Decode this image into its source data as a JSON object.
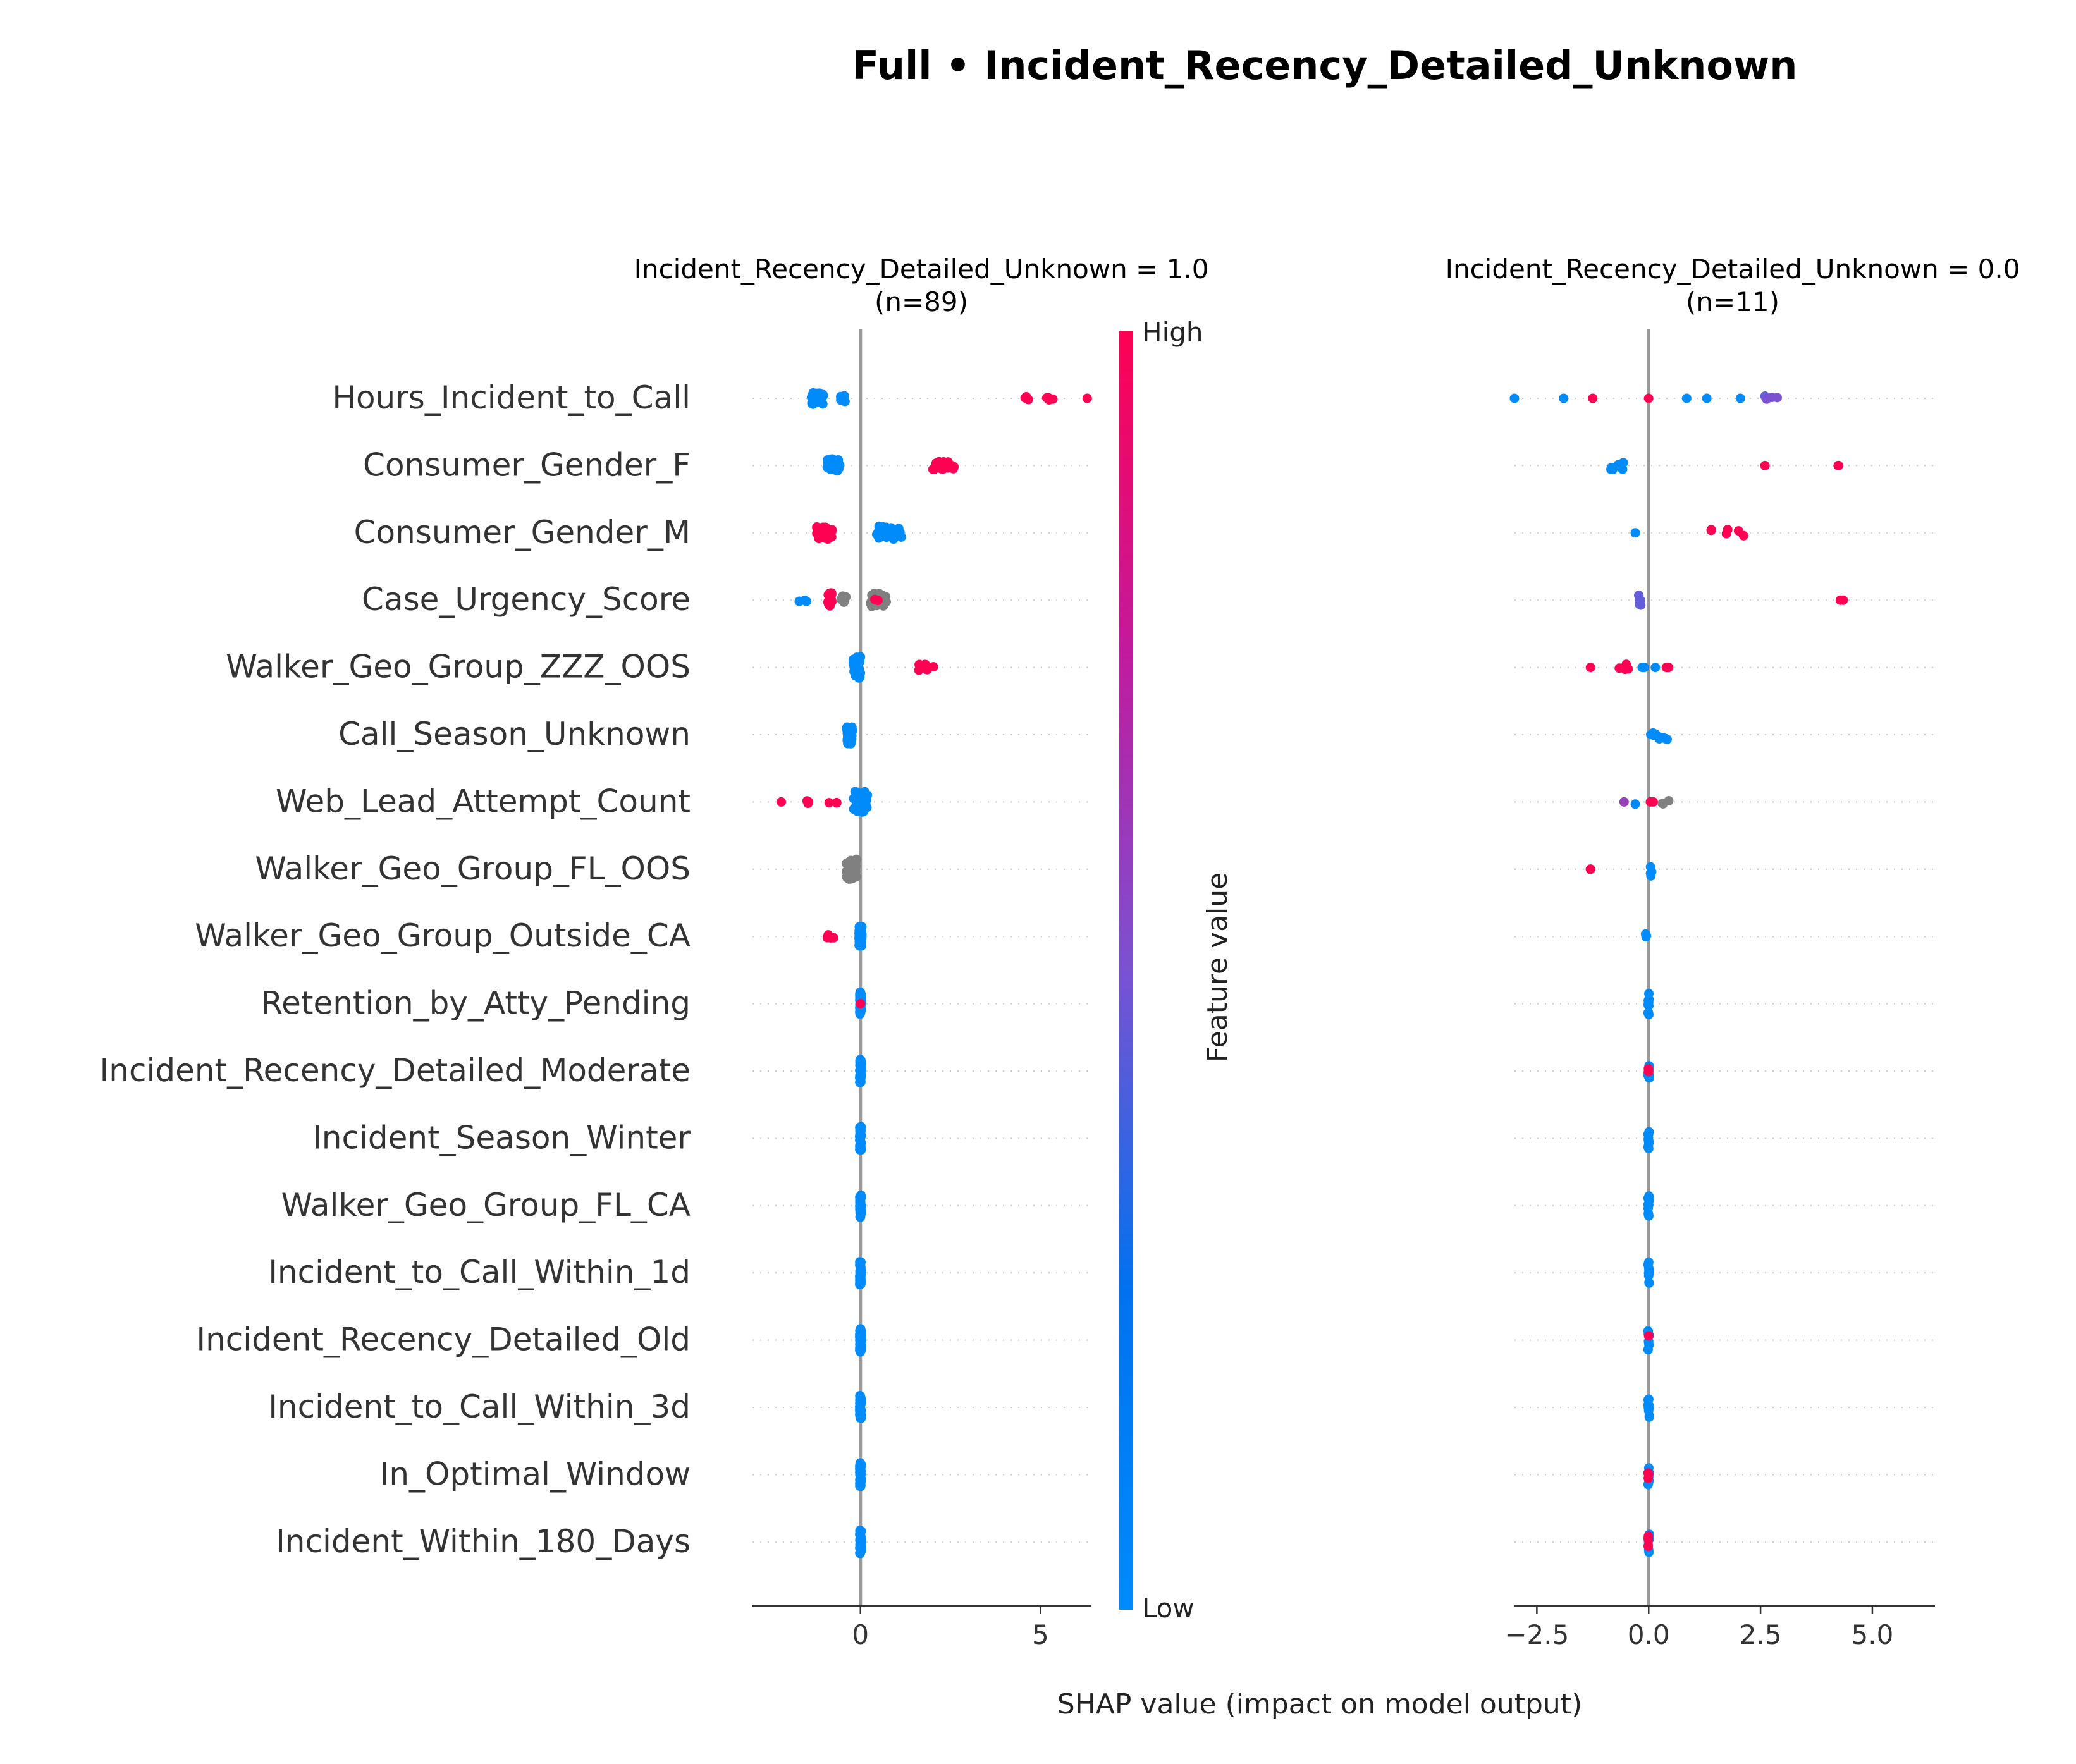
{
  "chart_data": {
    "type": "scatter",
    "subtype": "shap-beeswarm",
    "title": "Full • Incident_Recency_Detailed_Unknown",
    "xlabel": "SHAP value (impact on model output)",
    "features": [
      "Hours_Incident_to_Call",
      "Consumer_Gender_F",
      "Consumer_Gender_M",
      "Case_Urgency_Score",
      "Walker_Geo_Group_ZZZ_OOS",
      "Call_Season_Unknown",
      "Web_Lead_Attempt_Count",
      "Walker_Geo_Group_FL_OOS",
      "Walker_Geo_Group_Outside_CA",
      "Retention_by_Atty_Pending",
      "Incident_Recency_Detailed_Moderate",
      "Incident_Season_Winter",
      "Walker_Geo_Group_FL_CA",
      "Incident_to_Call_Within_1d",
      "Incident_Recency_Detailed_Old",
      "Incident_to_Call_Within_3d",
      "In_Optimal_Window",
      "Incident_Within_180_Days"
    ],
    "colorbar": {
      "label": "Feature value",
      "high_label": "High",
      "low_label": "Low",
      "low_color": "#008bfb",
      "high_color": "#ff0052",
      "missing_color": "#808080"
    },
    "panels": [
      {
        "title_line1": "Incident_Recency_Detailed_Unknown = 1.0",
        "title_line2": "(n=89)",
        "xlim": [
          -3,
          6.4
        ],
        "xticks": [
          0,
          5
        ],
        "xtick_labels": [
          "0",
          "5"
        ],
        "points": [
          {
            "f": 0,
            "x": -1.2,
            "n": 34,
            "spread": 0.35,
            "v": 0.0,
            "h": 0.18
          },
          {
            "f": 0,
            "x": -0.5,
            "n": 4,
            "spread": 0.2,
            "v": 0.0,
            "h": 0.1
          },
          {
            "f": 0,
            "x": 4.6,
            "n": 4,
            "spread": 0.15,
            "v": 1.0,
            "h": 0.05
          },
          {
            "f": 0,
            "x": 5.3,
            "n": 4,
            "spread": 0.25,
            "v": 1.0,
            "h": 0.05
          },
          {
            "f": 0,
            "x": 6.3,
            "n": 1,
            "spread": 0,
            "v": 1.0,
            "h": 0
          },
          {
            "f": 1,
            "x": -0.75,
            "n": 30,
            "spread": 0.35,
            "v": 0.0,
            "h": 0.2
          },
          {
            "f": 1,
            "x": 2.3,
            "n": 34,
            "spread": 0.6,
            "v": 1.0,
            "h": 0.12
          },
          {
            "f": 2,
            "x": -1.0,
            "n": 30,
            "spread": 0.45,
            "v": 1.0,
            "h": 0.2
          },
          {
            "f": 2,
            "x": 0.8,
            "n": 28,
            "spread": 0.7,
            "v": 0.0,
            "h": 0.2
          },
          {
            "f": 3,
            "x": -1.6,
            "n": 3,
            "spread": 0.2,
            "v": 0.0,
            "h": 0.05
          },
          {
            "f": 3,
            "x": -0.85,
            "n": 28,
            "spread": 0.12,
            "v": 1.0,
            "h": 0.22
          },
          {
            "f": 3,
            "x": -0.45,
            "n": 6,
            "spread": 0.2,
            "v": null,
            "h": 0.12
          },
          {
            "f": 3,
            "x": 0.5,
            "n": 24,
            "spread": 0.45,
            "v": null,
            "h": 0.2
          },
          {
            "f": 3,
            "x": 0.45,
            "n": 2,
            "spread": 0.1,
            "v": 1.0,
            "h": 0.02
          },
          {
            "f": 4,
            "x": -0.1,
            "n": 40,
            "spread": 0.2,
            "v": 0.0,
            "h": 0.32
          },
          {
            "f": 4,
            "x": 1.8,
            "n": 10,
            "spread": 0.5,
            "v": 1.0,
            "h": 0.1
          },
          {
            "f": 5,
            "x": -0.3,
            "n": 40,
            "spread": 0.15,
            "v": 0.0,
            "h": 0.28
          },
          {
            "f": 6,
            "x": -2.2,
            "n": 1,
            "spread": 0,
            "v": 1.0,
            "h": 0
          },
          {
            "f": 6,
            "x": -1.45,
            "n": 3,
            "spread": 0.1,
            "v": 1.0,
            "h": 0.05
          },
          {
            "f": 6,
            "x": -0.75,
            "n": 3,
            "spread": 0.3,
            "v": 1.0,
            "h": 0.05
          },
          {
            "f": 6,
            "x": 0.0,
            "n": 38,
            "spread": 0.4,
            "v": 0.0,
            "h": 0.32
          },
          {
            "f": 7,
            "x": -0.25,
            "n": 40,
            "spread": 0.3,
            "v": null,
            "h": 0.3
          },
          {
            "f": 8,
            "x": -0.85,
            "n": 6,
            "spread": 0.3,
            "v": 1.0,
            "h": 0.05
          },
          {
            "f": 8,
            "x": 0.0,
            "n": 40,
            "spread": 0.08,
            "v": 0.0,
            "h": 0.3
          },
          {
            "f": 9,
            "x": 0.0,
            "n": 55,
            "spread": 0.04,
            "v": 0.0,
            "h": 0.35
          },
          {
            "f": 9,
            "x": 0.0,
            "n": 1,
            "spread": 0,
            "v": 1.0,
            "h": 0
          },
          {
            "f": 10,
            "x": 0.0,
            "n": 55,
            "spread": 0.04,
            "v": 0.0,
            "h": 0.35
          },
          {
            "f": 11,
            "x": 0.0,
            "n": 55,
            "spread": 0.04,
            "v": 0.0,
            "h": 0.35
          },
          {
            "f": 12,
            "x": 0.0,
            "n": 55,
            "spread": 0.04,
            "v": 0.0,
            "h": 0.35
          },
          {
            "f": 13,
            "x": 0.0,
            "n": 55,
            "spread": 0.04,
            "v": 0.0,
            "h": 0.35
          },
          {
            "f": 14,
            "x": 0.0,
            "n": 55,
            "spread": 0.04,
            "v": 0.0,
            "h": 0.35
          },
          {
            "f": 15,
            "x": 0.0,
            "n": 55,
            "spread": 0.04,
            "v": 0.0,
            "h": 0.35
          },
          {
            "f": 16,
            "x": 0.0,
            "n": 55,
            "spread": 0.04,
            "v": 0.0,
            "h": 0.35
          },
          {
            "f": 17,
            "x": 0.0,
            "n": 55,
            "spread": 0.04,
            "v": 0.0,
            "h": 0.35
          }
        ]
      },
      {
        "title_line1": "Incident_Recency_Detailed_Unknown = 0.0",
        "title_line2": "(n=11)",
        "xlim": [
          -3.0,
          6.4
        ],
        "xticks": [
          -2.5,
          0.0,
          2.5,
          5.0
        ],
        "xtick_labels": [
          "−2.5",
          "0.0",
          "2.5",
          "5.0"
        ],
        "points": [
          {
            "f": 0,
            "x": -3.0,
            "n": 1,
            "spread": 0,
            "v": 0.0,
            "h": 0
          },
          {
            "f": 0,
            "x": -1.9,
            "n": 1,
            "spread": 0,
            "v": 0.0,
            "h": 0
          },
          {
            "f": 0,
            "x": -1.25,
            "n": 1,
            "spread": 0,
            "v": 1.0,
            "h": 0
          },
          {
            "f": 0,
            "x": 0.0,
            "n": 1,
            "spread": 0,
            "v": 1.0,
            "h": 0
          },
          {
            "f": 0,
            "x": 0.85,
            "n": 1,
            "spread": 0,
            "v": 0.0,
            "h": 0
          },
          {
            "f": 0,
            "x": 1.3,
            "n": 1,
            "spread": 0,
            "v": 0.0,
            "h": 0
          },
          {
            "f": 0,
            "x": 2.05,
            "n": 1,
            "spread": 0,
            "v": 0.0,
            "h": 0
          },
          {
            "f": 0,
            "x": 2.6,
            "n": 1,
            "spread": 0,
            "v": 0.4,
            "h": 0.1
          },
          {
            "f": 0,
            "x": 2.75,
            "n": 3,
            "spread": 0.25,
            "v": 0.5,
            "h": 0.03
          },
          {
            "f": 1,
            "x": -0.7,
            "n": 6,
            "spread": 0.3,
            "v": 0.0,
            "h": 0.18
          },
          {
            "f": 1,
            "x": 2.6,
            "n": 1,
            "spread": 0,
            "v": 1.0,
            "h": 0
          },
          {
            "f": 1,
            "x": 4.15,
            "n": 2,
            "spread": 0.2,
            "v": 1.0,
            "h": 0
          },
          {
            "f": 2,
            "x": -0.3,
            "n": 1,
            "spread": 0,
            "v": 0.0,
            "h": 0
          },
          {
            "f": 2,
            "x": 1.75,
            "n": 6,
            "spread": 0.9,
            "v": 1.0,
            "h": 0.1
          },
          {
            "f": 3,
            "x": -0.2,
            "n": 7,
            "spread": 0.05,
            "v": 0.4,
            "h": 0.2
          },
          {
            "f": 3,
            "x": 4.3,
            "n": 2,
            "spread": 0.1,
            "v": 1.0,
            "h": 0
          },
          {
            "f": 4,
            "x": -1.3,
            "n": 1,
            "spread": 0,
            "v": 1.0,
            "h": 0
          },
          {
            "f": 4,
            "x": -0.55,
            "n": 4,
            "spread": 0.4,
            "v": 1.0,
            "h": 0.1
          },
          {
            "f": 4,
            "x": 0.0,
            "n": 3,
            "spread": 0.3,
            "v": 0.0,
            "h": 0
          },
          {
            "f": 4,
            "x": 0.4,
            "n": 2,
            "spread": 0.2,
            "v": 1.0,
            "h": 0
          },
          {
            "f": 5,
            "x": 0.3,
            "n": 9,
            "spread": 0.7,
            "v": 0.0,
            "h": 0.15
          },
          {
            "f": 6,
            "x": -0.3,
            "n": 1,
            "spread": 0,
            "v": 0.0,
            "h": 0.1
          },
          {
            "f": 6,
            "x": -0.55,
            "n": 1,
            "spread": 0,
            "v": 0.6,
            "h": 0
          },
          {
            "f": 6,
            "x": 0.1,
            "n": 2,
            "spread": 0.2,
            "v": 1.0,
            "h": 0
          },
          {
            "f": 6,
            "x": 0.4,
            "n": 3,
            "spread": 0.2,
            "v": null,
            "h": 0.06
          },
          {
            "f": 7,
            "x": -1.3,
            "n": 2,
            "spread": 0.15,
            "v": 1.0,
            "h": 0
          },
          {
            "f": 7,
            "x": 0.05,
            "n": 4,
            "spread": 0.05,
            "v": 0.0,
            "h": 0.2
          },
          {
            "f": 8,
            "x": -0.1,
            "n": 3,
            "spread": 0.1,
            "v": 0.0,
            "h": 0.12
          },
          {
            "f": 9,
            "x": 0.0,
            "n": 11,
            "spread": 0.03,
            "v": 0.0,
            "h": 0.32
          },
          {
            "f": 10,
            "x": 0.0,
            "n": 9,
            "spread": 0.03,
            "v": 0.0,
            "h": 0.32
          },
          {
            "f": 10,
            "x": 0.0,
            "n": 2,
            "spread": 0.03,
            "v": 1.0,
            "h": 0.08
          },
          {
            "f": 11,
            "x": 0.0,
            "n": 11,
            "spread": 0.03,
            "v": 0.0,
            "h": 0.32
          },
          {
            "f": 12,
            "x": 0.0,
            "n": 11,
            "spread": 0.03,
            "v": 0.0,
            "h": 0.32
          },
          {
            "f": 13,
            "x": 0.0,
            "n": 11,
            "spread": 0.03,
            "v": 0.0,
            "h": 0.32
          },
          {
            "f": 14,
            "x": 0.0,
            "n": 10,
            "spread": 0.03,
            "v": 0.0,
            "h": 0.32
          },
          {
            "f": 14,
            "x": 0.0,
            "n": 1,
            "spread": 0,
            "v": 1.0,
            "h": 0.3
          },
          {
            "f": 15,
            "x": 0.0,
            "n": 11,
            "spread": 0.03,
            "v": 0.0,
            "h": 0.32
          },
          {
            "f": 16,
            "x": 0.0,
            "n": 8,
            "spread": 0.03,
            "v": 0.0,
            "h": 0.32
          },
          {
            "f": 16,
            "x": 0.0,
            "n": 3,
            "spread": 0.03,
            "v": 1.0,
            "h": 0.12
          },
          {
            "f": 17,
            "x": 0.0,
            "n": 7,
            "spread": 0.03,
            "v": 0.0,
            "h": 0.32
          },
          {
            "f": 17,
            "x": 0.0,
            "n": 4,
            "spread": 0.03,
            "v": 1.0,
            "h": 0.18
          }
        ]
      }
    ]
  }
}
